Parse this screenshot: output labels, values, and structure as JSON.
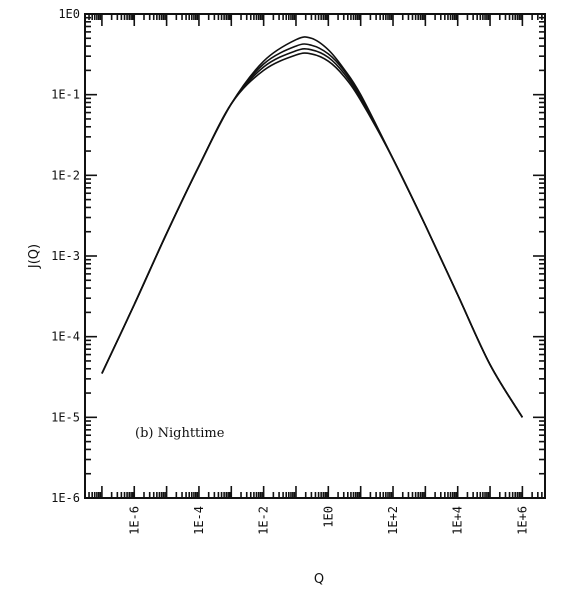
{
  "chart_data": {
    "type": "line",
    "title": "",
    "xlabel": "Q",
    "ylabel": "J(Q)",
    "xscale": "log",
    "yscale": "log",
    "xlim": [
      3e-08,
      5000000.0
    ],
    "ylim": [
      1e-06,
      1.0
    ],
    "x_ticks": [
      {
        "value": 1e-06,
        "label": "1E-6"
      },
      {
        "value": 0.0001,
        "label": "1E-4"
      },
      {
        "value": 0.01,
        "label": "1E-2"
      },
      {
        "value": 1,
        "label": "1E0"
      },
      {
        "value": 100.0,
        "label": "1E+2"
      },
      {
        "value": 10000.0,
        "label": "1E+4"
      },
      {
        "value": 1000000.0,
        "label": "1E+6"
      }
    ],
    "y_ticks": [
      {
        "value": 1,
        "label": "1E0"
      },
      {
        "value": 0.1,
        "label": "1E-1"
      },
      {
        "value": 0.01,
        "label": "1E-2"
      },
      {
        "value": 0.001,
        "label": "1E-3"
      },
      {
        "value": 0.0001,
        "label": "1E-4"
      },
      {
        "value": 1e-05,
        "label": "1E-5"
      },
      {
        "value": 1e-06,
        "label": "1E-6"
      }
    ],
    "annotation": "(b) Nighttime",
    "grid": false,
    "legend": "none",
    "series": [
      {
        "x": [
          1e-07,
          1e-06,
          1e-05,
          0.0001,
          0.001,
          0.01,
          0.1,
          0.3,
          1,
          3,
          10,
          100,
          1000.0,
          10000.0,
          100000.0,
          1000000.0
        ],
        "y": [
          3.5e-05,
          0.00025,
          0.0019,
          0.013,
          0.077,
          0.26,
          0.48,
          0.5,
          0.36,
          0.21,
          0.1,
          0.016,
          0.0024,
          0.00033,
          4.5e-05,
          1e-05
        ]
      },
      {
        "x": [
          1e-07,
          1e-06,
          1e-05,
          0.0001,
          0.001,
          0.01,
          0.1,
          0.3,
          1,
          3,
          10,
          100,
          1000.0,
          10000.0,
          100000.0,
          1000000.0
        ],
        "y": [
          3.5e-05,
          0.00025,
          0.0019,
          0.013,
          0.077,
          0.24,
          0.4,
          0.41,
          0.32,
          0.2,
          0.095,
          0.016,
          0.0024,
          0.00033,
          4.5e-05,
          1e-05
        ]
      },
      {
        "x": [
          1e-07,
          1e-06,
          1e-05,
          0.0001,
          0.001,
          0.01,
          0.1,
          0.3,
          1,
          3,
          10,
          100,
          1000.0,
          10000.0,
          100000.0,
          1000000.0
        ],
        "y": [
          3.5e-05,
          0.00025,
          0.0019,
          0.013,
          0.077,
          0.22,
          0.35,
          0.36,
          0.29,
          0.185,
          0.09,
          0.016,
          0.0024,
          0.00033,
          4.5e-05,
          1e-05
        ]
      },
      {
        "x": [
          1e-07,
          1e-06,
          1e-05,
          0.0001,
          0.001,
          0.01,
          0.1,
          0.3,
          1,
          3,
          10,
          100,
          1000.0,
          10000.0,
          100000.0,
          1000000.0
        ],
        "y": [
          3.5e-05,
          0.00025,
          0.0019,
          0.013,
          0.077,
          0.2,
          0.31,
          0.32,
          0.26,
          0.17,
          0.085,
          0.016,
          0.0024,
          0.00033,
          4.5e-05,
          1e-05
        ]
      }
    ]
  }
}
